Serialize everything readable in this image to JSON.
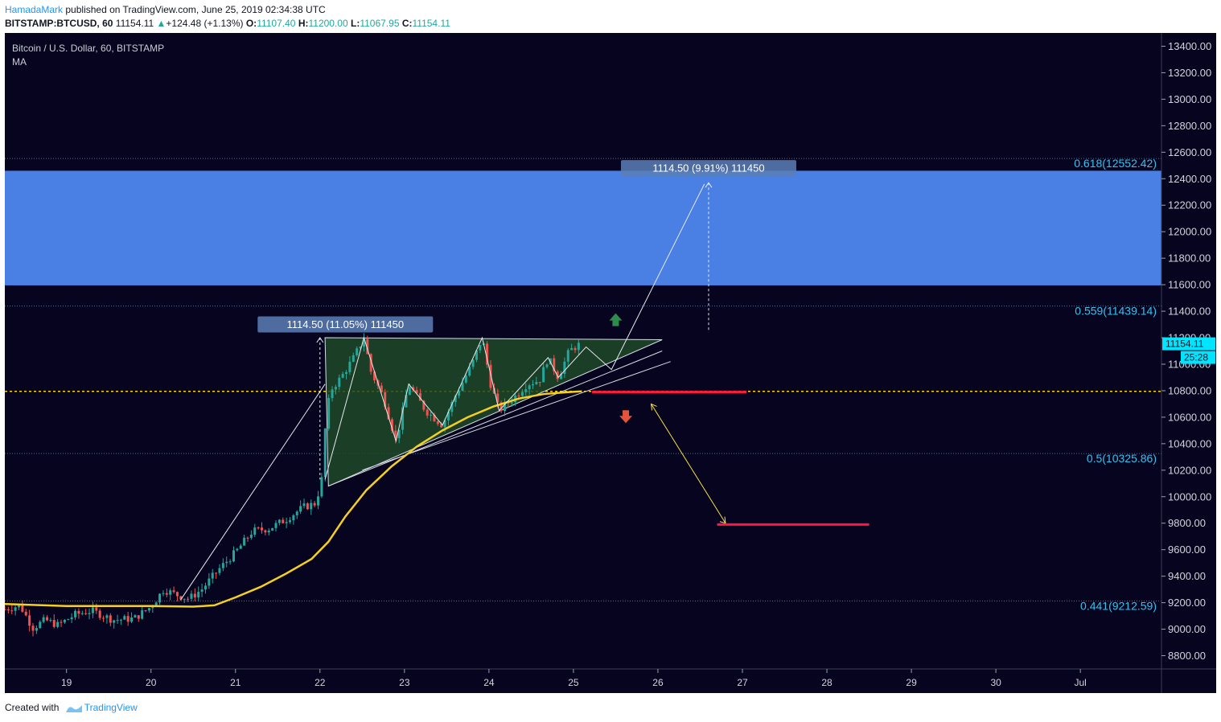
{
  "header": {
    "user": "HamadaMark",
    "published": "published on TradingView.com, June 25, 2019 02:34:38 UTC",
    "symbol": "BITSTAMP:BTCUSD, 60",
    "last": "11154.11",
    "change": "+124.48 (+1.13%)",
    "open_label": "O:",
    "open": "11107.40",
    "high_label": "H:",
    "high": "11200.00",
    "low_label": "L:",
    "low": "11067.95",
    "close_label": "C:",
    "close": "11154.11"
  },
  "footer": {
    "created": "Created with",
    "brand": "TradingView"
  },
  "colors": {
    "background": "#07041f",
    "zone": "#4a80e4",
    "ma": "#f5d020",
    "fib": "#33c3f0",
    "up_candle": "#26a69a",
    "down_candle": "#ef5350",
    "target_line": "#ff1744",
    "triangle_fill": "#1e4a28"
  },
  "chart_data": {
    "type": "candlestick",
    "title": "Bitcoin / U.S. Dollar, 60, BITSTAMP",
    "indicator": "MA",
    "ylim": [
      8700,
      13500
    ],
    "y_ticks": [
      8800,
      9000,
      9200,
      9400,
      9600,
      9800,
      10000,
      10200,
      10400,
      10600,
      10800,
      11000,
      11200,
      11400,
      11600,
      11800,
      12000,
      12200,
      12400,
      12600,
      12800,
      13000,
      13200,
      13400
    ],
    "y_tick_labels": [
      "8800.00",
      "9000.00",
      "9200.00",
      "9400.00",
      "9600.00",
      "9800.00",
      "10000.00",
      "10200.00",
      "10400.00",
      "10600.00",
      "10800.00",
      "11000.00",
      "11200.00",
      "11400.00",
      "11600.00",
      "11800.00",
      "12000.00",
      "12200.00",
      "12400.00",
      "12600.00",
      "12800.00",
      "13000.00",
      "13200.00",
      "13400.00"
    ],
    "x_range": [
      18.27,
      31.96
    ],
    "x_ticks": [
      {
        "value": 19,
        "label": "19"
      },
      {
        "value": 20,
        "label": "20"
      },
      {
        "value": 21,
        "label": "21"
      },
      {
        "value": 22,
        "label": "22"
      },
      {
        "value": 23,
        "label": "23"
      },
      {
        "value": 24,
        "label": "24"
      },
      {
        "value": 25,
        "label": "25"
      },
      {
        "value": 26,
        "label": "26"
      },
      {
        "value": 27,
        "label": "27"
      },
      {
        "value": 28,
        "label": "28"
      },
      {
        "value": 29,
        "label": "29"
      },
      {
        "value": 30,
        "label": "30"
      },
      {
        "value": 31,
        "label": "Jul"
      }
    ],
    "price_path": [
      [
        18.27,
        9150
      ],
      [
        18.45,
        9180
      ],
      [
        18.6,
        9010
      ],
      [
        18.75,
        9070
      ],
      [
        18.9,
        9030
      ],
      [
        19.1,
        9110
      ],
      [
        19.3,
        9140
      ],
      [
        19.55,
        9070
      ],
      [
        19.8,
        9080
      ],
      [
        20.0,
        9170
      ],
      [
        20.15,
        9300
      ],
      [
        20.3,
        9260
      ],
      [
        20.45,
        9230
      ],
      [
        20.6,
        9300
      ],
      [
        20.8,
        9450
      ],
      [
        21.0,
        9580
      ],
      [
        21.2,
        9740
      ],
      [
        21.4,
        9760
      ],
      [
        21.6,
        9830
      ],
      [
        21.8,
        9920
      ],
      [
        21.95,
        9950
      ],
      [
        22.02,
        10130
      ],
      [
        22.06,
        10500
      ],
      [
        22.12,
        10800
      ],
      [
        22.25,
        10900
      ],
      [
        22.4,
        11050
      ],
      [
        22.52,
        11200
      ],
      [
        22.6,
        10950
      ],
      [
        22.75,
        10750
      ],
      [
        22.9,
        10420
      ],
      [
        23.05,
        10850
      ],
      [
        23.25,
        10650
      ],
      [
        23.45,
        10540
      ],
      [
        23.6,
        10760
      ],
      [
        23.8,
        11000
      ],
      [
        23.92,
        11200
      ],
      [
        24.02,
        10850
      ],
      [
        24.12,
        10650
      ],
      [
        24.3,
        10750
      ],
      [
        24.45,
        10850
      ],
      [
        24.6,
        10880
      ],
      [
        24.7,
        11050
      ],
      [
        24.82,
        10900
      ],
      [
        24.95,
        11100
      ],
      [
        25.08,
        11154.11
      ]
    ],
    "ma_path": [
      [
        18.27,
        9190
      ],
      [
        19.0,
        9175
      ],
      [
        20.0,
        9175
      ],
      [
        20.5,
        9170
      ],
      [
        20.75,
        9180
      ],
      [
        21.0,
        9240
      ],
      [
        21.3,
        9320
      ],
      [
        21.6,
        9420
      ],
      [
        21.9,
        9530
      ],
      [
        22.1,
        9660
      ],
      [
        22.3,
        9850
      ],
      [
        22.55,
        10050
      ],
      [
        22.85,
        10230
      ],
      [
        23.15,
        10380
      ],
      [
        23.45,
        10500
      ],
      [
        23.75,
        10600
      ],
      [
        24.05,
        10680
      ],
      [
        24.35,
        10740
      ],
      [
        24.65,
        10775
      ],
      [
        24.95,
        10790
      ],
      [
        25.1,
        10795
      ]
    ],
    "zone": {
      "low": 11595,
      "high": 12460
    },
    "fib_levels": [
      {
        "value": 12552.42,
        "label": "0.618(12552.42)"
      },
      {
        "value": 11439.14,
        "label": "0.559(11439.14)"
      },
      {
        "value": 10325.86,
        "label": "0.5(10325.86)"
      },
      {
        "value": 9212.59,
        "label": "0.441(9212.59)"
      }
    ],
    "horizontal_level": 10795,
    "current_price": {
      "value": 11154.11,
      "label": "11154.11",
      "countdown": "25:28"
    },
    "measure_labels": [
      {
        "text": "1114.50 (11.05%) 111450",
        "x": 22.3,
        "y": 11300
      },
      {
        "text": "1114.50 (9.91%) 111450",
        "x": 26.6,
        "y": 12480
      }
    ],
    "triangle": [
      [
        22.06,
        11200
      ],
      [
        26.05,
        11185
      ],
      [
        22.1,
        10080
      ]
    ],
    "target_lines": [
      {
        "x1": 25.22,
        "x2": 27.05,
        "y": 10790
      },
      {
        "x1": 26.7,
        "x2": 28.5,
        "y": 9790
      }
    ],
    "arrows": [
      {
        "direction": "up",
        "x": 25.5,
        "y": 11330
      },
      {
        "direction": "down",
        "x": 25.62,
        "y": 10610
      }
    ]
  }
}
